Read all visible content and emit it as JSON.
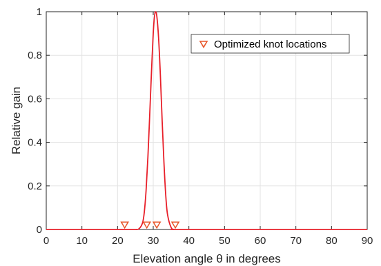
{
  "chart_data": {
    "type": "line",
    "xlabel": "Elevation angle θ in degrees",
    "ylabel": "Relative gain",
    "xlim": [
      0,
      90
    ],
    "ylim": [
      0,
      1
    ],
    "xticks": [
      0,
      10,
      20,
      30,
      40,
      50,
      60,
      70,
      80,
      90
    ],
    "yticks": [
      0,
      0.2,
      0.4,
      0.6,
      0.8,
      1
    ],
    "ytick_labels": [
      "0",
      "0.2",
      "0.4",
      "0.6",
      "0.8",
      "1"
    ],
    "grid": true,
    "legend_position": "top-right",
    "series": [
      {
        "kind": "line",
        "color": "#e8202a",
        "x": [
          0,
          20,
          25,
          26,
          27,
          27.5,
          28,
          28.5,
          29,
          29.5,
          30,
          30.3,
          30.6,
          31,
          31.5,
          32,
          32.5,
          33,
          33.5,
          34,
          35,
          36,
          40,
          90
        ],
        "y": [
          0,
          0,
          0,
          0.003,
          0.03,
          0.08,
          0.18,
          0.33,
          0.52,
          0.72,
          0.9,
          0.97,
          1.0,
          0.98,
          0.88,
          0.71,
          0.5,
          0.31,
          0.16,
          0.07,
          0.01,
          0,
          0,
          0
        ]
      },
      {
        "kind": "marker",
        "name": "Optimized knot locations",
        "marker": "triangle-down",
        "color": "#e8562a",
        "x": [
          22,
          28.2,
          31,
          36.2
        ],
        "y": [
          0.015,
          0.015,
          0.015,
          0.015
        ]
      }
    ]
  }
}
